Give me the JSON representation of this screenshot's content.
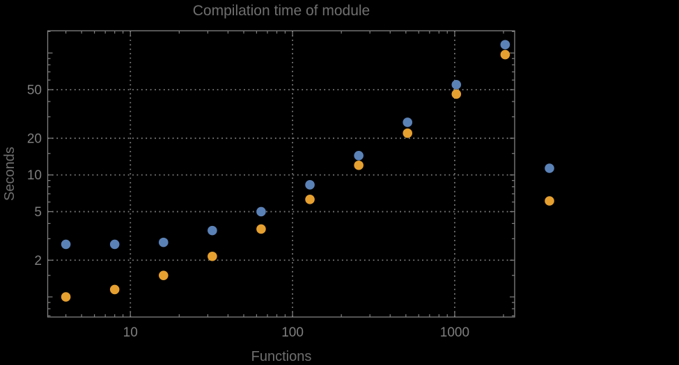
{
  "chart_data": {
    "type": "scatter",
    "title": "Compilation time of module",
    "xlabel": "Functions",
    "ylabel": "Seconds",
    "x_scale": "log",
    "y_scale": "log",
    "xlim": [
      3.09,
      2343
    ],
    "ylim": [
      0.684,
      152
    ],
    "grid": "dotted",
    "x": [
      4,
      8,
      16,
      32,
      64,
      128,
      256,
      512,
      1024,
      2048
    ],
    "series": [
      {
        "color": "#5B82B7",
        "values": [
          2.7,
          2.7,
          2.8,
          3.5,
          5.0,
          8.3,
          14.4,
          27,
          55,
          117
        ]
      },
      {
        "color": "#E6A030",
        "values": [
          1.0,
          1.15,
          1.5,
          2.15,
          3.6,
          6.3,
          12,
          22,
          46,
          97
        ]
      }
    ],
    "x_ticks": {
      "major": [
        10,
        100,
        1000
      ],
      "labels": [
        "10",
        "100",
        "1000"
      ],
      "minor": [
        4,
        5,
        6,
        7,
        8,
        9,
        20,
        30,
        40,
        50,
        60,
        70,
        80,
        90,
        200,
        300,
        400,
        500,
        600,
        700,
        800,
        900,
        2000
      ]
    },
    "y_ticks": {
      "major": [
        2,
        5,
        10,
        20,
        50
      ],
      "labels": [
        "2",
        "5",
        "10",
        "20",
        "50"
      ],
      "major_unlabeled": [
        1,
        100
      ],
      "minor": [
        0.7,
        0.8,
        0.9,
        1.5,
        3,
        4,
        6,
        7,
        8,
        9,
        15,
        30,
        40,
        60,
        70,
        80,
        90,
        150
      ]
    },
    "legend": {
      "position": "right",
      "markers": [
        {
          "color": "#5B82B7"
        },
        {
          "color": "#E6A030"
        }
      ]
    }
  },
  "colors": {
    "background": "#000000",
    "frame": "#828282",
    "grid": "#7c7c7c",
    "tick_label": "#7f7f7f",
    "title": "#6f6f6f",
    "axis_label": "#6f6f6f",
    "series_blue": "#5B82B7",
    "series_orange": "#E6A030"
  }
}
